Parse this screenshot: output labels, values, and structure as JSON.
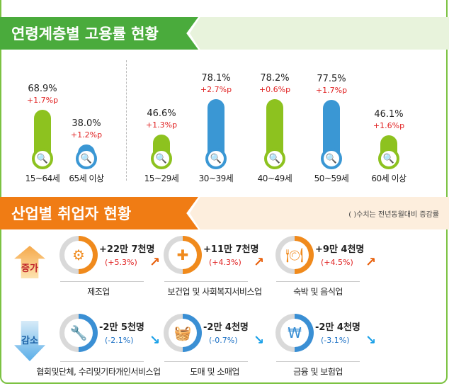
{
  "section1": {
    "title": "연령계층별 고용률 현황",
    "color": "#4aab3c",
    "band_color": "#e8f3dc"
  },
  "chart_data": {
    "type": "bar",
    "categories": [
      "15~64세",
      "65세 이상",
      "15~29세",
      "30~39세",
      "40~49세",
      "50~59세",
      "60세 이상"
    ],
    "values": [
      68.9,
      38.0,
      46.6,
      78.1,
      78.2,
      77.5,
      46.1
    ],
    "value_labels": [
      "68.9%",
      "38.0%",
      "46.6%",
      "78.1%",
      "78.2%",
      "77.5%",
      "46.1%"
    ],
    "change_labels": [
      "+1.7%p",
      "+1.2%p",
      "+1.3%p",
      "+2.7%p",
      "+0.6%p",
      "+1.7%p",
      "+1.6%p"
    ],
    "colors": [
      "#8dc21f",
      "#3a97d4",
      "#8dc21f",
      "#3a97d4",
      "#8dc21f",
      "#3a97d4",
      "#8dc21f"
    ],
    "icon": "document-search-icon"
  },
  "section2": {
    "title": "산업별 취업자 현황",
    "color": "#f07c14",
    "band_color": "#fdeedd",
    "note": "( )수치는 전년동월대비 증감률"
  },
  "increase": {
    "label": "증가",
    "items": [
      {
        "value": "+22만 7천명",
        "pct": "(+5.3%)",
        "name": "제조업",
        "icon": "gears-icon"
      },
      {
        "value": "+11만 7천명",
        "pct": "(+4.3%)",
        "name": "보건업 및 사회복지서비스업",
        "icon": "medical-kit-icon"
      },
      {
        "value": "+9만 4천명",
        "pct": "(+4.5%)",
        "name": "숙박 및 음식업",
        "icon": "plate-cutlery-icon"
      }
    ]
  },
  "decrease": {
    "label": "감소",
    "items": [
      {
        "value": "-2만 5천명",
        "pct": "(-2.1%)",
        "name": "협회및단체, 수리및기타개인서비스업",
        "icon": "wrench-building-icon"
      },
      {
        "value": "-2만 4천명",
        "pct": "(-0.7%)",
        "name": "도매 및 소매업",
        "icon": "basket-icon"
      },
      {
        "value": "-2만 4천명",
        "pct": "(-3.1%)",
        "name": "금융 및 보험업",
        "icon": "won-laptop-icon"
      }
    ]
  },
  "colors": {
    "up": "#f08a1c",
    "down": "#3a8fd4",
    "up_text": "#e02020",
    "down_text": "#1a6fc4"
  }
}
